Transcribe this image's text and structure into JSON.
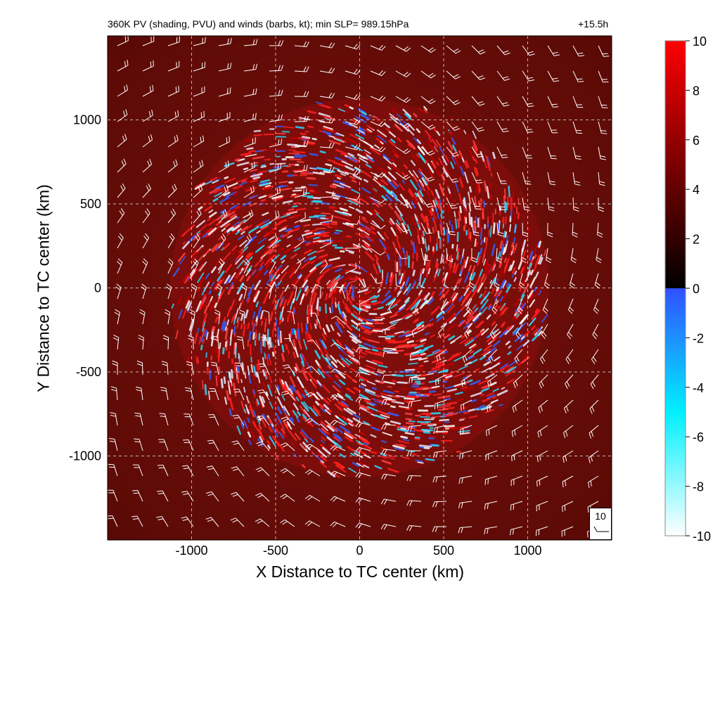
{
  "header": {
    "title": "360K PV (shading, PVU) and winds (barbs, kt); min SLP= 989.15hPa",
    "time": "+15.5h"
  },
  "chart_data": {
    "type": "heatmap",
    "title": "360K PV (shading, PVU) and winds (barbs, kt); min SLP= 989.15hPa",
    "annotation": "+15.5h",
    "xlabel": "X Distance to TC center (km)",
    "ylabel": "Y Distance to TC center (km)",
    "xlim": [
      -1500,
      1500
    ],
    "ylim": [
      -1500,
      1500
    ],
    "x_ticks": [
      -1000,
      -500,
      0,
      500,
      1000
    ],
    "y_ticks": [
      -1000,
      -500,
      0,
      500,
      1000
    ],
    "grid": true,
    "colorbar": {
      "min": -10,
      "max": 10,
      "ticks": [
        10,
        8,
        6,
        4,
        2,
        0,
        -2,
        -4,
        -6,
        -8,
        -10
      ],
      "colors": {
        "neg_low": "#ffffff",
        "neg_mid": "#00f0ff",
        "neg_high": "#3050ff",
        "zero": "#000000",
        "pos_mid": "#800000",
        "pos_high": "#ff0000"
      }
    },
    "field": {
      "background_pv": 4,
      "disturbed_radius_km": 1150,
      "description_colors": {
        "background": "#6b0c08",
        "ring_red": "#ff1e1e",
        "ring_blue": "#2ad8ff"
      }
    },
    "wind_barbs": {
      "reference_speed_kt": "10",
      "rotation": "cyclonic"
    }
  }
}
